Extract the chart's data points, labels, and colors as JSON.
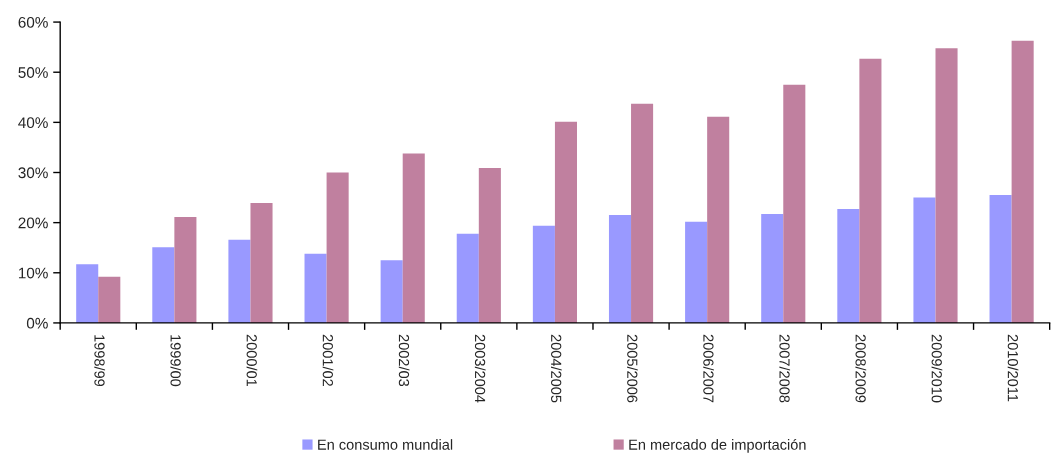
{
  "chart_data": {
    "type": "bar",
    "categories": [
      "1998/99",
      "1999/00",
      "2000/01",
      "2001/02",
      "2002/03",
      "2003/2004",
      "2004/2005",
      "2005/2006",
      "2006/2007",
      "2007/2008",
      "2008/2009",
      "2009/2010",
      "2010/2011"
    ],
    "series": [
      {
        "name": "En consumo mundial",
        "color": "#9999ff",
        "values": [
          11.7,
          15.1,
          16.6,
          13.8,
          12.5,
          17.8,
          19.4,
          21.5,
          20.2,
          21.7,
          22.7,
          25.0,
          25.5
        ]
      },
      {
        "name": "En mercado de importación",
        "color": "#c0809f",
        "values": [
          9.2,
          21.1,
          23.9,
          30.0,
          33.8,
          30.9,
          40.1,
          43.7,
          41.1,
          47.5,
          52.7,
          54.8,
          56.3
        ]
      }
    ],
    "ylim": [
      0,
      60
    ],
    "yticks": [
      {
        "value": 0,
        "label": "0%"
      },
      {
        "value": 10,
        "label": "10%"
      },
      {
        "value": 20,
        "label": "20%"
      },
      {
        "value": 30,
        "label": "30%"
      },
      {
        "value": 40,
        "label": "40%"
      },
      {
        "value": 50,
        "label": "50%"
      },
      {
        "value": 60,
        "label": "60%"
      }
    ],
    "grid": false,
    "legend": "bottom"
  }
}
